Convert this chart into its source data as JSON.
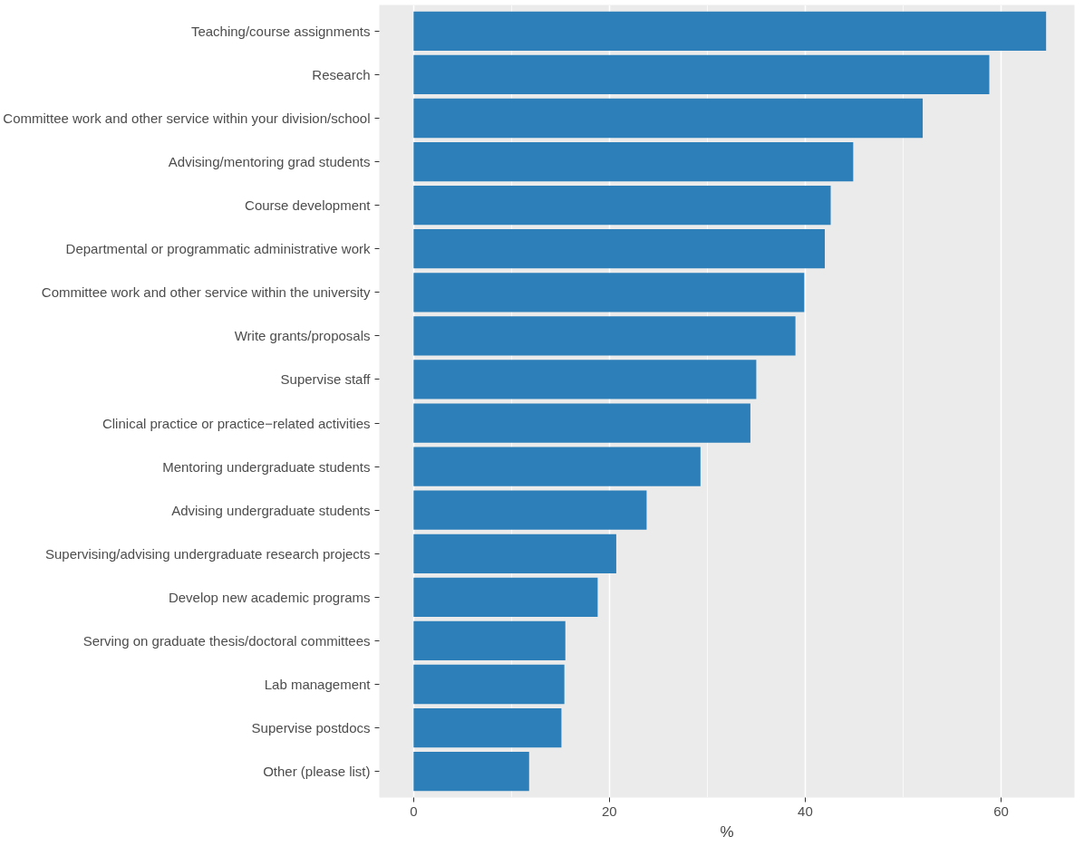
{
  "chart_data": {
    "type": "bar",
    "orientation": "horizontal",
    "xlabel": "%",
    "categories": [
      "Teaching/course assignments",
      "Research",
      "Committee work and other service within your division/school",
      "Advising/mentoring grad students",
      "Course development",
      "Departmental or programmatic administrative work",
      "Committee work and other service within the university",
      "Write grants/proposals",
      "Supervise staff",
      "Clinical practice or practice−related activities",
      "Mentoring undergraduate students",
      "Advising undergraduate students",
      "Supervising/advising undergraduate research projects",
      "Develop new academic programs",
      "Serving on graduate thesis/doctoral committees",
      "Lab management",
      "Supervise postdocs",
      "Other (please list)"
    ],
    "values": [
      64.6,
      58.8,
      52.0,
      44.9,
      42.6,
      42.0,
      39.9,
      39.0,
      35.0,
      34.4,
      29.3,
      23.8,
      20.7,
      18.8,
      15.5,
      15.4,
      15.1,
      11.8
    ],
    "color": "#2c7fb8",
    "xlim": [
      -3.5,
      67.5
    ],
    "xticks": [
      0,
      20,
      40,
      60
    ],
    "grid": true
  }
}
